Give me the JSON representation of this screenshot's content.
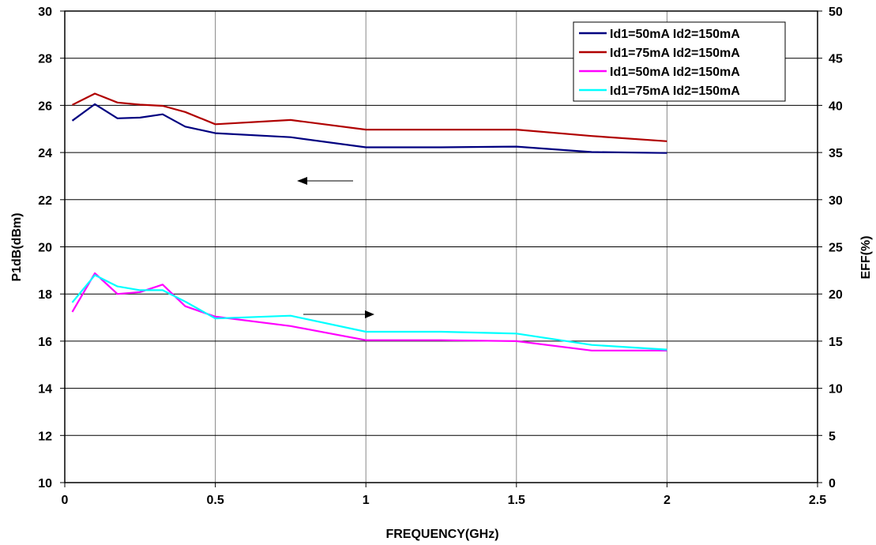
{
  "chart_data": {
    "type": "line",
    "title": "",
    "xlabel": "FREQUENCY(GHz)",
    "ylabel": "P1dB(dBm)",
    "y2label": "EFF(%)",
    "xlim": [
      0,
      2.5
    ],
    "ylim": [
      10,
      30
    ],
    "y2lim": [
      0,
      50
    ],
    "xticks": [
      "0",
      "0.5",
      "1",
      "1.5",
      "2",
      "2.5"
    ],
    "yticks": [
      "10",
      "12",
      "14",
      "16",
      "18",
      "20",
      "22",
      "24",
      "26",
      "28",
      "30"
    ],
    "y2ticks": [
      "0",
      "5",
      "10",
      "15",
      "20",
      "25",
      "30",
      "35",
      "40",
      "45",
      "50"
    ],
    "grid": true,
    "legend_position": "top-right",
    "series": [
      {
        "name": "Id1=50mA Id2=150mA",
        "axis": "left",
        "color": "#000080",
        "x": [
          0.025,
          0.1,
          0.175,
          0.25,
          0.325,
          0.4,
          0.5,
          0.75,
          1.0,
          1.25,
          1.5,
          1.75,
          2.0
        ],
        "y": [
          25.35,
          26.05,
          25.45,
          25.48,
          25.62,
          25.1,
          24.82,
          24.65,
          24.22,
          24.22,
          24.25,
          24.02,
          23.98
        ]
      },
      {
        "name": "Id1=75mA Id2=150mA",
        "axis": "left",
        "color": "#B00000",
        "x": [
          0.025,
          0.1,
          0.175,
          0.25,
          0.325,
          0.4,
          0.5,
          0.75,
          1.0,
          1.25,
          1.5,
          1.75,
          2.0
        ],
        "y": [
          26.02,
          26.5,
          26.12,
          26.03,
          25.98,
          25.72,
          25.2,
          25.38,
          24.97,
          24.97,
          24.97,
          24.7,
          24.48
        ]
      },
      {
        "name": "Id1=50mA Id2=150mA",
        "axis": "right",
        "color": "#FF00FF",
        "x": [
          0.025,
          0.1,
          0.175,
          0.25,
          0.325,
          0.4,
          0.5,
          0.75,
          1.0,
          1.25,
          1.5,
          1.75,
          2.0
        ],
        "y": [
          18.1,
          22.2,
          20.0,
          20.2,
          21.0,
          18.7,
          17.6,
          16.6,
          15.1,
          15.1,
          15.0,
          14.0,
          14.0
        ]
      },
      {
        "name": "Id1=75mA Id2=150mA",
        "axis": "right",
        "color": "#00FFFF",
        "x": [
          0.025,
          0.1,
          0.175,
          0.25,
          0.325,
          0.4,
          0.5,
          0.75,
          1.0,
          1.25,
          1.5,
          1.75,
          2.0
        ],
        "y": [
          19.1,
          22.0,
          20.8,
          20.4,
          20.4,
          19.2,
          17.4,
          17.7,
          16.0,
          16.0,
          15.8,
          14.6,
          14.1
        ]
      }
    ],
    "annotations": [
      {
        "type": "arrow",
        "direction": "left",
        "points_to": "P1dB(dBm)"
      },
      {
        "type": "arrow",
        "direction": "right",
        "points_to": "EFF(%)"
      }
    ]
  }
}
